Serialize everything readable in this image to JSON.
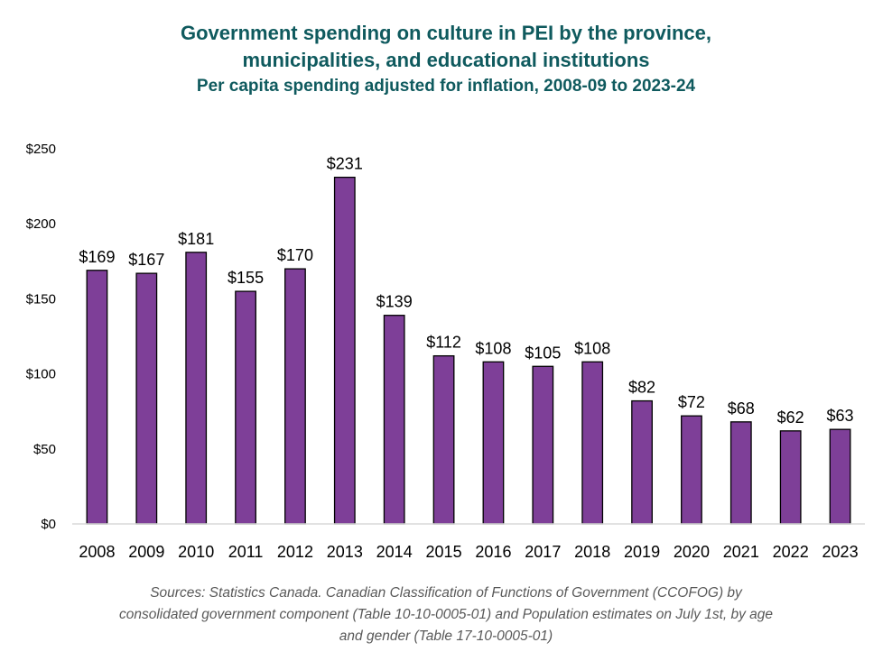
{
  "chart_data": {
    "type": "bar",
    "title": "Government spending on culture in PEI by the province, municipalities, and educational institutions",
    "subtitle": "Per capita spending adjusted for inflation, 2008-09 to 2023-24",
    "xlabel": "",
    "ylabel": "",
    "categories": [
      "2008",
      "2009",
      "2010",
      "2011",
      "2012",
      "2013",
      "2014",
      "2015",
      "2016",
      "2017",
      "2018",
      "2019",
      "2020",
      "2021",
      "2022",
      "2023"
    ],
    "values": [
      169,
      167,
      181,
      155,
      170,
      231,
      139,
      112,
      108,
      105,
      108,
      82,
      72,
      68,
      62,
      63
    ],
    "data_labels": [
      "$169",
      "$167",
      "$181",
      "$155",
      "$170",
      "$231",
      "$139",
      "$112",
      "$108",
      "$105",
      "$108",
      "$82",
      "$72",
      "$68",
      "$62",
      "$63"
    ],
    "ylim": [
      0,
      250
    ],
    "yticks": [
      0,
      50,
      100,
      150,
      200,
      250
    ],
    "ytick_labels": [
      "$0",
      "$50",
      "$100",
      "$150",
      "$200",
      "$250"
    ],
    "grid": false,
    "legend": "none",
    "bar_color": "#7e3f98",
    "bar_edge_color": "#000000"
  },
  "header": {
    "title_line1": "Government spending on culture in PEI by the province,",
    "title_line2": "municipalities, and educational institutions",
    "subtitle": "Per capita spending adjusted for inflation, 2008-09 to 2023-24",
    "title_color": "#0f5a5e"
  },
  "footer": {
    "source_line1": "Sources: Statistics Canada. Canadian Classification of Functions of Government (CCOFOG) by",
    "source_line2": "consolidated government component (Table 10-10-0005-01) and Population estimates on July 1st, by age",
    "source_line3": "and gender (Table 17-10-0005-01)"
  }
}
